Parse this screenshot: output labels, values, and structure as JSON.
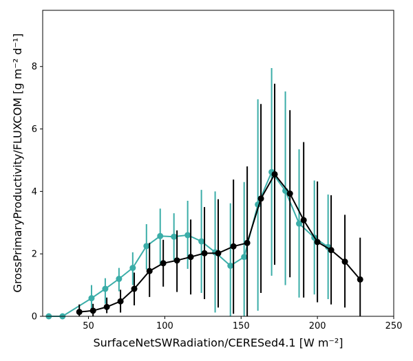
{
  "chart_data": {
    "type": "line",
    "xlabel": "SurfaceNetSWRadiation/CERESed4.1 [W m⁻²]",
    "ylabel": "GrossPrimaryProductivity/FLUXCOM [g m⁻² d⁻¹]",
    "xlim": [
      20,
      250
    ],
    "ylim": [
      0,
      9.8
    ],
    "xticks": [
      50,
      100,
      150,
      200,
      250
    ],
    "yticks": [
      0,
      2,
      4,
      6,
      8
    ],
    "grid": false,
    "series": [
      {
        "color": "#3aada8",
        "points": [
          {
            "x": 24,
            "y": 0.0,
            "lo": 0.0,
            "hi": 0.0
          },
          {
            "x": 33,
            "y": 0.0,
            "lo": 0.0,
            "hi": 0.0
          },
          {
            "x": 52,
            "y": 0.58,
            "lo": 0.1,
            "hi": 1.0
          },
          {
            "x": 61,
            "y": 0.88,
            "lo": 0.4,
            "hi": 1.22
          },
          {
            "x": 70,
            "y": 1.2,
            "lo": 0.8,
            "hi": 1.55
          },
          {
            "x": 79,
            "y": 1.55,
            "lo": 1.0,
            "hi": 2.05
          },
          {
            "x": 88,
            "y": 2.25,
            "lo": 1.5,
            "hi": 2.95
          },
          {
            "x": 97,
            "y": 2.57,
            "lo": 1.62,
            "hi": 3.45
          },
          {
            "x": 106,
            "y": 2.55,
            "lo": 1.8,
            "hi": 3.3
          },
          {
            "x": 115,
            "y": 2.6,
            "lo": 1.52,
            "hi": 3.7
          },
          {
            "x": 124,
            "y": 2.4,
            "lo": 0.75,
            "hi": 4.05
          },
          {
            "x": 133,
            "y": 2.05,
            "lo": 0.12,
            "hi": 4.0
          },
          {
            "x": 143,
            "y": 1.62,
            "lo": 0.0,
            "hi": 3.62
          },
          {
            "x": 152,
            "y": 1.9,
            "lo": 0.0,
            "hi": 4.3
          },
          {
            "x": 161,
            "y": 3.58,
            "lo": 0.18,
            "hi": 6.95
          },
          {
            "x": 170,
            "y": 4.62,
            "lo": 1.3,
            "hi": 7.95
          },
          {
            "x": 179,
            "y": 4.02,
            "lo": 1.0,
            "hi": 7.2
          },
          {
            "x": 188,
            "y": 2.97,
            "lo": 0.6,
            "hi": 5.35
          },
          {
            "x": 198,
            "y": 2.52,
            "lo": 0.7,
            "hi": 4.35
          },
          {
            "x": 207,
            "y": 2.22,
            "lo": 0.55,
            "hi": 3.9
          }
        ]
      },
      {
        "color": "#000000",
        "points": [
          {
            "x": 44,
            "y": 0.14,
            "lo": 0.0,
            "hi": 0.38
          },
          {
            "x": 53,
            "y": 0.18,
            "lo": 0.0,
            "hi": 0.4
          },
          {
            "x": 62,
            "y": 0.3,
            "lo": 0.1,
            "hi": 0.6
          },
          {
            "x": 71,
            "y": 0.48,
            "lo": 0.12,
            "hi": 0.85
          },
          {
            "x": 80,
            "y": 0.88,
            "lo": 0.35,
            "hi": 1.4
          },
          {
            "x": 90,
            "y": 1.45,
            "lo": 0.62,
            "hi": 2.35
          },
          {
            "x": 99,
            "y": 1.7,
            "lo": 0.95,
            "hi": 2.45
          },
          {
            "x": 108,
            "y": 1.79,
            "lo": 0.78,
            "hi": 2.75
          },
          {
            "x": 117,
            "y": 1.9,
            "lo": 0.7,
            "hi": 3.1
          },
          {
            "x": 126,
            "y": 2.02,
            "lo": 0.55,
            "hi": 3.5
          },
          {
            "x": 135,
            "y": 2.02,
            "lo": 0.28,
            "hi": 3.75
          },
          {
            "x": 145,
            "y": 2.24,
            "lo": 0.08,
            "hi": 4.38
          },
          {
            "x": 154,
            "y": 2.35,
            "lo": 0.0,
            "hi": 4.8
          },
          {
            "x": 163,
            "y": 3.77,
            "lo": 0.75,
            "hi": 6.8
          },
          {
            "x": 172,
            "y": 4.55,
            "lo": 1.65,
            "hi": 7.45
          },
          {
            "x": 182,
            "y": 3.93,
            "lo": 1.25,
            "hi": 6.6
          },
          {
            "x": 191,
            "y": 3.08,
            "lo": 0.6,
            "hi": 5.58
          },
          {
            "x": 200,
            "y": 2.38,
            "lo": 0.45,
            "hi": 4.32
          },
          {
            "x": 209,
            "y": 2.12,
            "lo": 0.38,
            "hi": 3.88
          },
          {
            "x": 218,
            "y": 1.75,
            "lo": 0.28,
            "hi": 3.25
          },
          {
            "x": 228,
            "y": 1.18,
            "lo": 0.0,
            "hi": 2.52
          }
        ]
      }
    ]
  }
}
